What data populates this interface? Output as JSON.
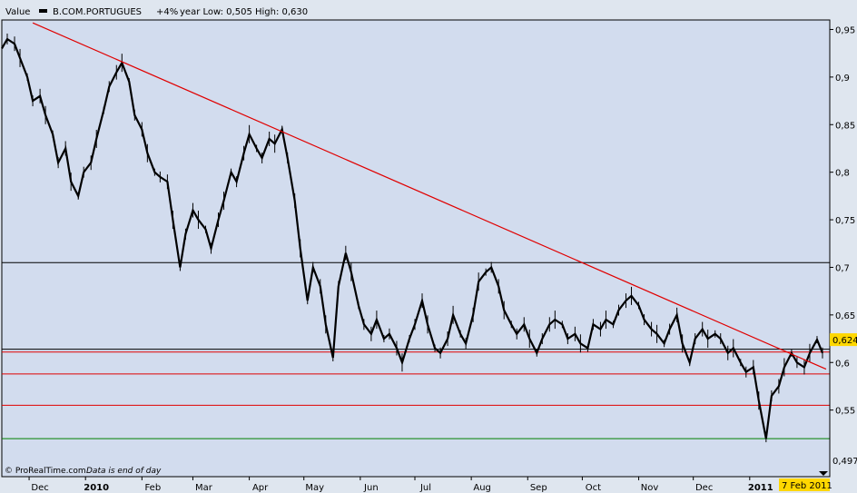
{
  "header": {
    "value_label": "Value",
    "instrument": "B.COM.PORTUGUES",
    "change": "+4%",
    "range_text": "year Low: 0,505 High: 0,630"
  },
  "footer": {
    "copyright": "© ProRealTime.com",
    "note": "Data is end of day"
  },
  "colors": {
    "plot_background": "#d2dcee",
    "trendline": "#e00000",
    "support_red": "#e00000",
    "support_green": "#008000",
    "black_level": "#000000",
    "price_tag_bg": "#ffd700"
  },
  "chart_data": {
    "type": "candlestick",
    "title": "B.COM.PORTUGUES",
    "xlabel": "",
    "ylabel": "",
    "ylim": [
      0.48,
      0.96
    ],
    "xlim": [
      "2009-11-16",
      "2011-02-14"
    ],
    "grid": false,
    "y_tick_labels": [
      "0,95",
      "0,9",
      "0,85",
      "0,8",
      "0,75",
      "0,7",
      "0,65",
      "0,6",
      "0,55"
    ],
    "y_ticks": [
      0.95,
      0.9,
      0.85,
      0.8,
      0.75,
      0.7,
      0.65,
      0.6,
      0.55
    ],
    "x_tick_labels": [
      "Dec",
      "2010",
      "Feb",
      "Mar",
      "Apr",
      "May",
      "Jun",
      "Jul",
      "Aug",
      "Sep",
      "Oct",
      "Nov",
      "Dec",
      "2011"
    ],
    "x_tick_dates": [
      "2009-12-01",
      "2010-01-01",
      "2010-02-01",
      "2010-03-01",
      "2010-04-01",
      "2010-05-01",
      "2010-06-01",
      "2010-07-01",
      "2010-08-01",
      "2010-09-01",
      "2010-10-01",
      "2010-11-01",
      "2010-12-01",
      "2011-01-01"
    ],
    "bold_x_ticks": [
      "2010",
      "2011"
    ],
    "last_value_label": "0,624",
    "last_value": 0.624,
    "last_date_label": "7 Feb 2011",
    "low_value_label": "0,497",
    "low_value": 0.497,
    "horizontal_lines": [
      {
        "value": 0.705,
        "color": "#000000"
      },
      {
        "value": 0.614,
        "color": "#000000"
      },
      {
        "value": 0.611,
        "color": "#e00000"
      },
      {
        "value": 0.588,
        "color": "#e00000"
      },
      {
        "value": 0.555,
        "color": "#e00000"
      },
      {
        "value": 0.52,
        "color": "#008000"
      }
    ],
    "trendline": {
      "start": [
        "2009-12-03",
        0.957
      ],
      "end": [
        "2011-02-12",
        0.593
      ],
      "color": "#e00000"
    },
    "series": [
      {
        "name": "B.COM.PORTUGUES",
        "points": [
          [
            "2009-11-16",
            0.93
          ],
          [
            "2009-11-19",
            0.94
          ],
          [
            "2009-11-23",
            0.935
          ],
          [
            "2009-11-26",
            0.92
          ],
          [
            "2009-11-30",
            0.9
          ],
          [
            "2009-12-03",
            0.875
          ],
          [
            "2009-12-07",
            0.88
          ],
          [
            "2009-12-10",
            0.86
          ],
          [
            "2009-12-14",
            0.84
          ],
          [
            "2009-12-17",
            0.81
          ],
          [
            "2009-12-21",
            0.825
          ],
          [
            "2009-12-24",
            0.79
          ],
          [
            "2009-12-28",
            0.775
          ],
          [
            "2009-12-31",
            0.8
          ],
          [
            "2010-01-04",
            0.81
          ],
          [
            "2010-01-07",
            0.835
          ],
          [
            "2010-01-11",
            0.865
          ],
          [
            "2010-01-14",
            0.89
          ],
          [
            "2010-01-18",
            0.905
          ],
          [
            "2010-01-21",
            0.915
          ],
          [
            "2010-01-25",
            0.895
          ],
          [
            "2010-01-28",
            0.86
          ],
          [
            "2010-02-01",
            0.845
          ],
          [
            "2010-02-04",
            0.82
          ],
          [
            "2010-02-08",
            0.8
          ],
          [
            "2010-02-11",
            0.795
          ],
          [
            "2010-02-15",
            0.79
          ],
          [
            "2010-02-18",
            0.75
          ],
          [
            "2010-02-22",
            0.7
          ],
          [
            "2010-02-25",
            0.735
          ],
          [
            "2010-03-01",
            0.76
          ],
          [
            "2010-03-04",
            0.75
          ],
          [
            "2010-03-08",
            0.74
          ],
          [
            "2010-03-11",
            0.72
          ],
          [
            "2010-03-15",
            0.75
          ],
          [
            "2010-03-18",
            0.77
          ],
          [
            "2010-03-22",
            0.8
          ],
          [
            "2010-03-25",
            0.79
          ],
          [
            "2010-03-29",
            0.82
          ],
          [
            "2010-04-01",
            0.84
          ],
          [
            "2010-04-05",
            0.825
          ],
          [
            "2010-04-08",
            0.815
          ],
          [
            "2010-04-12",
            0.835
          ],
          [
            "2010-04-15",
            0.83
          ],
          [
            "2010-04-19",
            0.845
          ],
          [
            "2010-04-22",
            0.815
          ],
          [
            "2010-04-26",
            0.77
          ],
          [
            "2010-04-29",
            0.72
          ],
          [
            "2010-05-03",
            0.665
          ],
          [
            "2010-05-06",
            0.7
          ],
          [
            "2010-05-10",
            0.68
          ],
          [
            "2010-05-13",
            0.64
          ],
          [
            "2010-05-17",
            0.605
          ],
          [
            "2010-05-20",
            0.68
          ],
          [
            "2010-05-24",
            0.715
          ],
          [
            "2010-05-27",
            0.695
          ],
          [
            "2010-05-31",
            0.66
          ],
          [
            "2010-06-03",
            0.64
          ],
          [
            "2010-06-07",
            0.63
          ],
          [
            "2010-06-10",
            0.645
          ],
          [
            "2010-06-14",
            0.625
          ],
          [
            "2010-06-17",
            0.63
          ],
          [
            "2010-06-21",
            0.615
          ],
          [
            "2010-06-24",
            0.6
          ],
          [
            "2010-06-28",
            0.625
          ],
          [
            "2010-07-01",
            0.64
          ],
          [
            "2010-07-05",
            0.665
          ],
          [
            "2010-07-08",
            0.64
          ],
          [
            "2010-07-12",
            0.615
          ],
          [
            "2010-07-15",
            0.61
          ],
          [
            "2010-07-19",
            0.625
          ],
          [
            "2010-07-22",
            0.65
          ],
          [
            "2010-07-26",
            0.63
          ],
          [
            "2010-07-29",
            0.62
          ],
          [
            "2010-08-02",
            0.65
          ],
          [
            "2010-08-05",
            0.685
          ],
          [
            "2010-08-09",
            0.695
          ],
          [
            "2010-08-12",
            0.7
          ],
          [
            "2010-08-16",
            0.68
          ],
          [
            "2010-08-19",
            0.655
          ],
          [
            "2010-08-23",
            0.64
          ],
          [
            "2010-08-26",
            0.63
          ],
          [
            "2010-08-30",
            0.64
          ],
          [
            "2010-09-02",
            0.625
          ],
          [
            "2010-09-06",
            0.61
          ],
          [
            "2010-09-09",
            0.625
          ],
          [
            "2010-09-13",
            0.64
          ],
          [
            "2010-09-16",
            0.645
          ],
          [
            "2010-09-20",
            0.64
          ],
          [
            "2010-09-23",
            0.625
          ],
          [
            "2010-09-27",
            0.63
          ],
          [
            "2010-09-30",
            0.62
          ],
          [
            "2010-10-04",
            0.615
          ],
          [
            "2010-10-07",
            0.64
          ],
          [
            "2010-10-11",
            0.635
          ],
          [
            "2010-10-14",
            0.645
          ],
          [
            "2010-10-18",
            0.64
          ],
          [
            "2010-10-21",
            0.655
          ],
          [
            "2010-10-25",
            0.665
          ],
          [
            "2010-10-28",
            0.67
          ],
          [
            "2010-11-01",
            0.66
          ],
          [
            "2010-11-04",
            0.645
          ],
          [
            "2010-11-08",
            0.635
          ],
          [
            "2010-11-11",
            0.63
          ],
          [
            "2010-11-15",
            0.62
          ],
          [
            "2010-11-18",
            0.635
          ],
          [
            "2010-11-22",
            0.65
          ],
          [
            "2010-11-25",
            0.62
          ],
          [
            "2010-11-29",
            0.6
          ],
          [
            "2010-12-02",
            0.625
          ],
          [
            "2010-12-06",
            0.635
          ],
          [
            "2010-12-09",
            0.625
          ],
          [
            "2010-12-13",
            0.63
          ],
          [
            "2010-12-16",
            0.625
          ],
          [
            "2010-12-20",
            0.61
          ],
          [
            "2010-12-23",
            0.615
          ],
          [
            "2010-12-27",
            0.6
          ],
          [
            "2010-12-30",
            0.59
          ],
          [
            "2011-01-03",
            0.595
          ],
          [
            "2011-01-06",
            0.56
          ],
          [
            "2011-01-10",
            0.52
          ],
          [
            "2011-01-13",
            0.565
          ],
          [
            "2011-01-17",
            0.575
          ],
          [
            "2011-01-20",
            0.595
          ],
          [
            "2011-01-24",
            0.61
          ],
          [
            "2011-01-27",
            0.6
          ],
          [
            "2011-01-31",
            0.595
          ],
          [
            "2011-02-03",
            0.61
          ],
          [
            "2011-02-07",
            0.624
          ],
          [
            "2011-02-10",
            0.61
          ]
        ]
      }
    ]
  }
}
